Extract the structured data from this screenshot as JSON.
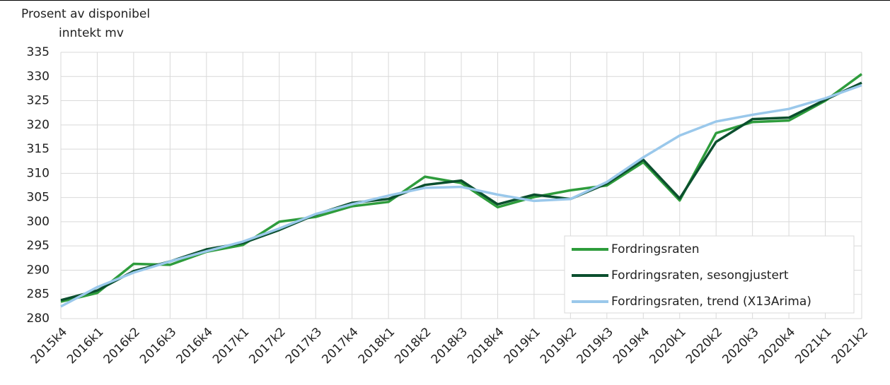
{
  "chart_data": {
    "type": "line",
    "ylabel": [
      "Prosent av disponibel",
      "inntekt mv"
    ],
    "categories": [
      "2015k4",
      "2016k1",
      "2016k2",
      "2016k3",
      "2016k4",
      "2017k1",
      "2017k2",
      "2017k3",
      "2017k4",
      "2018k1",
      "2018k2",
      "2018k3",
      "2018k4",
      "2019k1",
      "2019k2",
      "2019k3",
      "2019k4",
      "2020k1",
      "2020k2",
      "2020k3",
      "2020k4",
      "2021k1",
      "2021k2"
    ],
    "series": [
      {
        "name": "Fordringsraten",
        "color": "#2e9c3c",
        "values": [
          283.5,
          285.3,
          291.3,
          291.1,
          293.8,
          295.2,
          300.0,
          301.0,
          303.2,
          304.1,
          309.3,
          308.0,
          303.0,
          305.1,
          306.5,
          307.5,
          312.3,
          304.4,
          318.3,
          320.6,
          320.9,
          325.0,
          330.5
        ]
      },
      {
        "name": "Fordringsraten, sesongjustert",
        "color": "#0b4f2e",
        "values": [
          283.8,
          285.8,
          289.8,
          291.8,
          294.3,
          295.6,
          298.3,
          301.5,
          303.9,
          304.7,
          307.6,
          308.5,
          303.6,
          305.6,
          304.7,
          307.9,
          312.8,
          304.8,
          316.5,
          321.2,
          321.5,
          325.2,
          328.7
        ]
      },
      {
        "name": "Fordringsraten, trend (X13Arima)",
        "color": "#9ac8eb",
        "values": [
          282.5,
          286.5,
          289.5,
          291.8,
          293.9,
          295.9,
          298.6,
          301.6,
          303.6,
          305.4,
          307.0,
          307.2,
          305.6,
          304.3,
          304.7,
          308.2,
          313.3,
          317.8,
          320.7,
          322.1,
          323.3,
          325.5,
          328.2
        ]
      }
    ],
    "ylim": [
      280,
      335
    ],
    "yticks": [
      280,
      285,
      290,
      295,
      300,
      305,
      310,
      315,
      320,
      325,
      330,
      335
    ],
    "grid": true,
    "legend": "lower right"
  }
}
